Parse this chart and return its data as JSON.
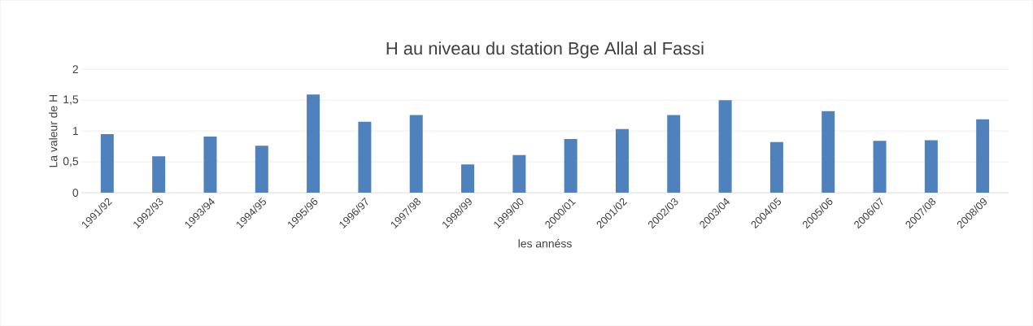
{
  "chart_data": {
    "type": "bar",
    "title": "H au  niveau du station Bge Allal al Fassi",
    "xlabel": "les annéss",
    "ylabel": "La valeur de H",
    "categories": [
      "1991/92",
      "1992/93",
      "1993/94",
      "1994/95",
      "1995/96",
      "1996/97",
      "1997/98",
      "1998/99",
      "1999/00",
      "2000/01",
      "2001/02",
      "2002/03",
      "2003/04",
      "2004/05",
      "2005/06",
      "2006/07",
      "2007/08",
      "2008/09"
    ],
    "values": [
      0.95,
      0.59,
      0.91,
      0.76,
      1.59,
      1.15,
      1.26,
      0.46,
      0.61,
      0.87,
      1.03,
      1.26,
      1.5,
      0.82,
      1.32,
      0.84,
      0.85,
      1.19
    ],
    "color": "#4f81bd",
    "ylim": [
      0,
      2
    ],
    "yticks": [
      0,
      {
        "value": 0.5,
        "label": "0,5"
      },
      1,
      {
        "value": 1.5,
        "label": "1,5"
      },
      2
    ],
    "grid": "y"
  }
}
